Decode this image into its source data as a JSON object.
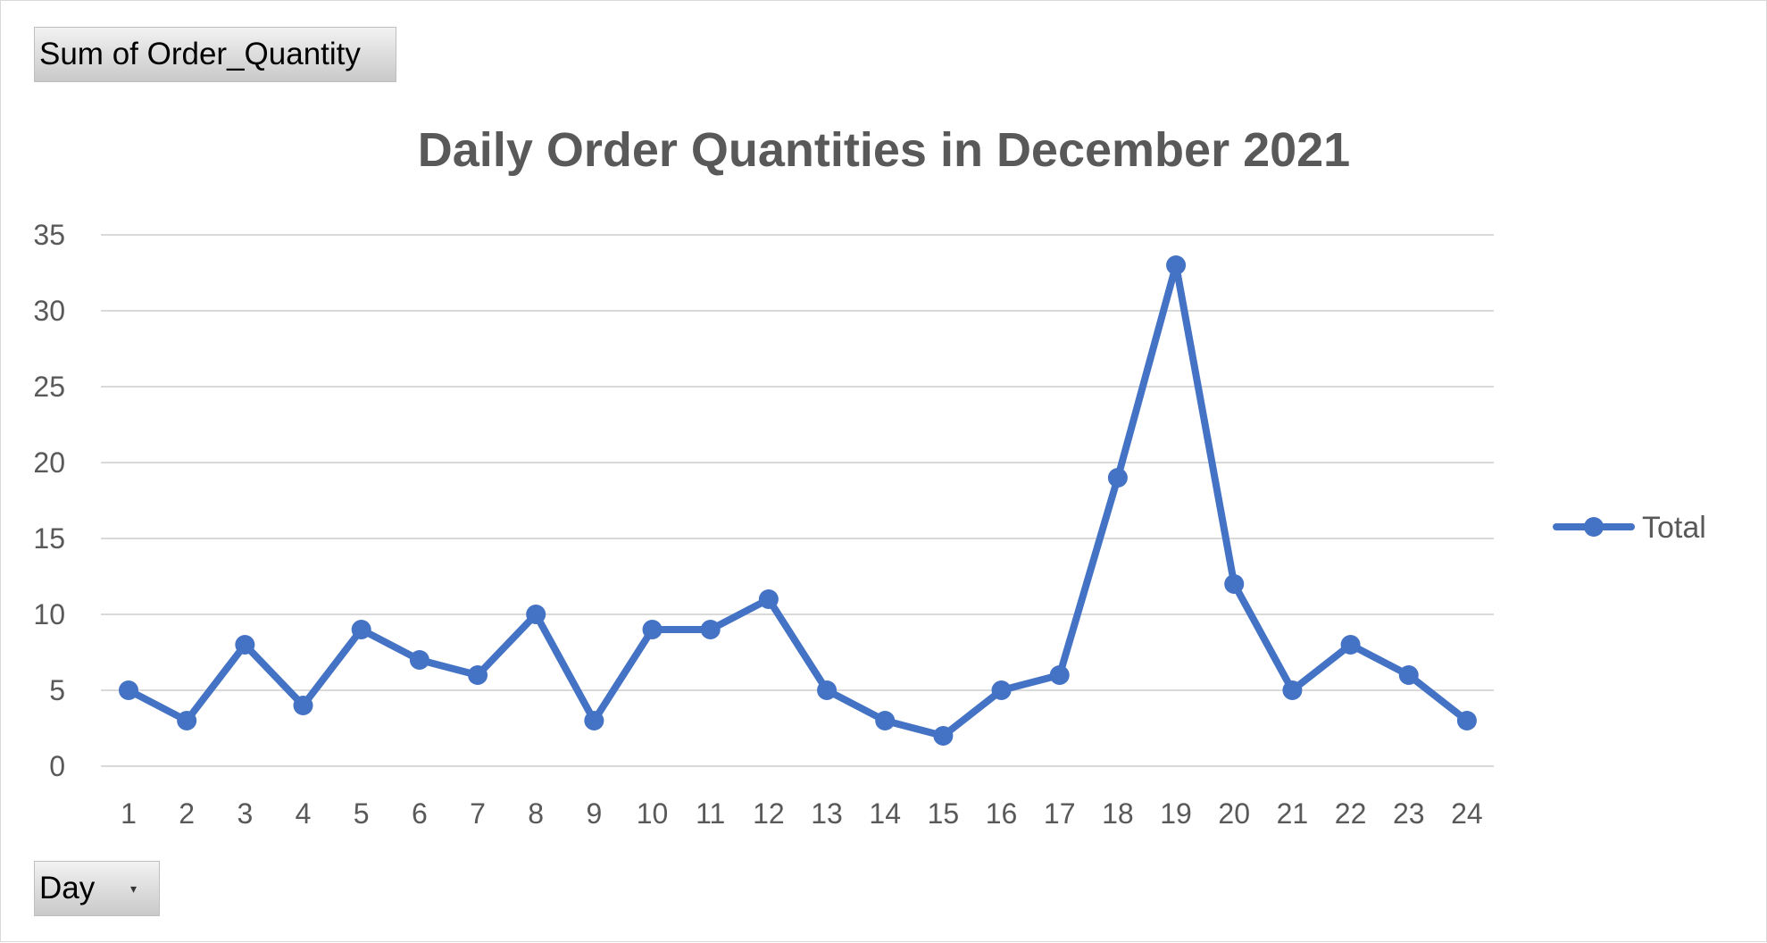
{
  "pivot_fields": {
    "value_field": "Sum of Order_Quantity",
    "axis_field": "Day"
  },
  "icons": {
    "axis_field_dropdown": "chevron-down-icon"
  },
  "colors": {
    "series": "#4472c4",
    "gridline": "#d9d9d9",
    "text": "#595959"
  },
  "chart_data": {
    "type": "line",
    "title": "Daily Order Quantities in December 2021",
    "xlabel": "",
    "ylabel": "",
    "categories": [
      "1",
      "2",
      "3",
      "4",
      "5",
      "6",
      "7",
      "8",
      "9",
      "10",
      "11",
      "12",
      "13",
      "14",
      "15",
      "16",
      "17",
      "18",
      "19",
      "20",
      "21",
      "22",
      "23",
      "24"
    ],
    "series": [
      {
        "name": "Total",
        "values": [
          5,
          3,
          8,
          4,
          9,
          7,
          6,
          10,
          3,
          9,
          9,
          11,
          5,
          3,
          2,
          5,
          6,
          19,
          33,
          12,
          5,
          8,
          6,
          3
        ]
      }
    ],
    "ylim": [
      0,
      35
    ],
    "yticks": [
      0,
      5,
      10,
      15,
      20,
      25,
      30,
      35
    ],
    "grid": true,
    "legend_position": "right",
    "markers": true
  }
}
